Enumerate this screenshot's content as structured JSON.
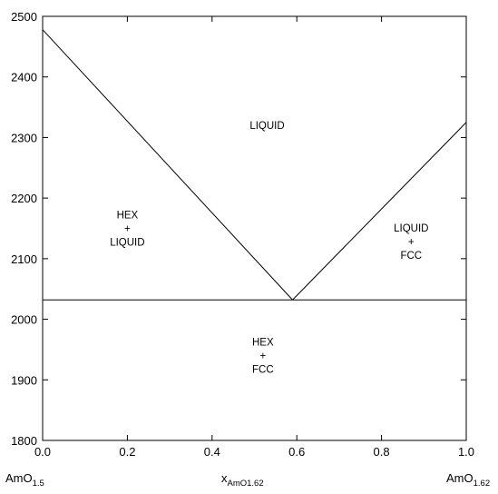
{
  "chart_data": {
    "type": "line",
    "xlim": [
      0.0,
      1.0
    ],
    "ylim": [
      1800,
      2500
    ],
    "x_ticks": [
      0.0,
      0.2,
      0.4,
      0.6,
      0.8,
      1.0
    ],
    "x_tick_labels": [
      "0.0",
      "0.2",
      "0.4",
      "0.6",
      "0.8",
      "1.0"
    ],
    "y_ticks": [
      1800,
      1900,
      2000,
      2100,
      2200,
      2300,
      2400,
      2500
    ],
    "y_tick_labels": [
      "1800",
      "1900",
      "2000",
      "2100",
      "2200",
      "2300",
      "2400",
      "2500"
    ],
    "xlabel": {
      "base": "x",
      "subscript": "AmO1.62"
    },
    "left_endmember": {
      "base": "AmO",
      "subscript": "1.5"
    },
    "right_endmember": {
      "base": "AmO",
      "subscript": "1.62"
    },
    "series": [
      {
        "x": [
          0.0,
          0.59
        ],
        "y": [
          2478,
          2032
        ]
      },
      {
        "x": [
          0.59,
          1.0
        ],
        "y": [
          2032,
          2325
        ]
      },
      {
        "x": [
          0.0,
          1.0
        ],
        "y": [
          2032,
          2032
        ]
      }
    ],
    "regions": [
      {
        "lines": [
          "LIQUID"
        ],
        "x": 0.53,
        "y": 2320
      },
      {
        "lines": [
          "HEX",
          "+",
          "LIQUID"
        ],
        "x": 0.2,
        "y": 2150
      },
      {
        "lines": [
          "LIQUID",
          "+",
          "FCC"
        ],
        "x": 0.87,
        "y": 2128
      },
      {
        "lines": [
          "HEX",
          "+",
          "FCC"
        ],
        "x": 0.52,
        "y": 1940
      }
    ],
    "grid": false
  }
}
